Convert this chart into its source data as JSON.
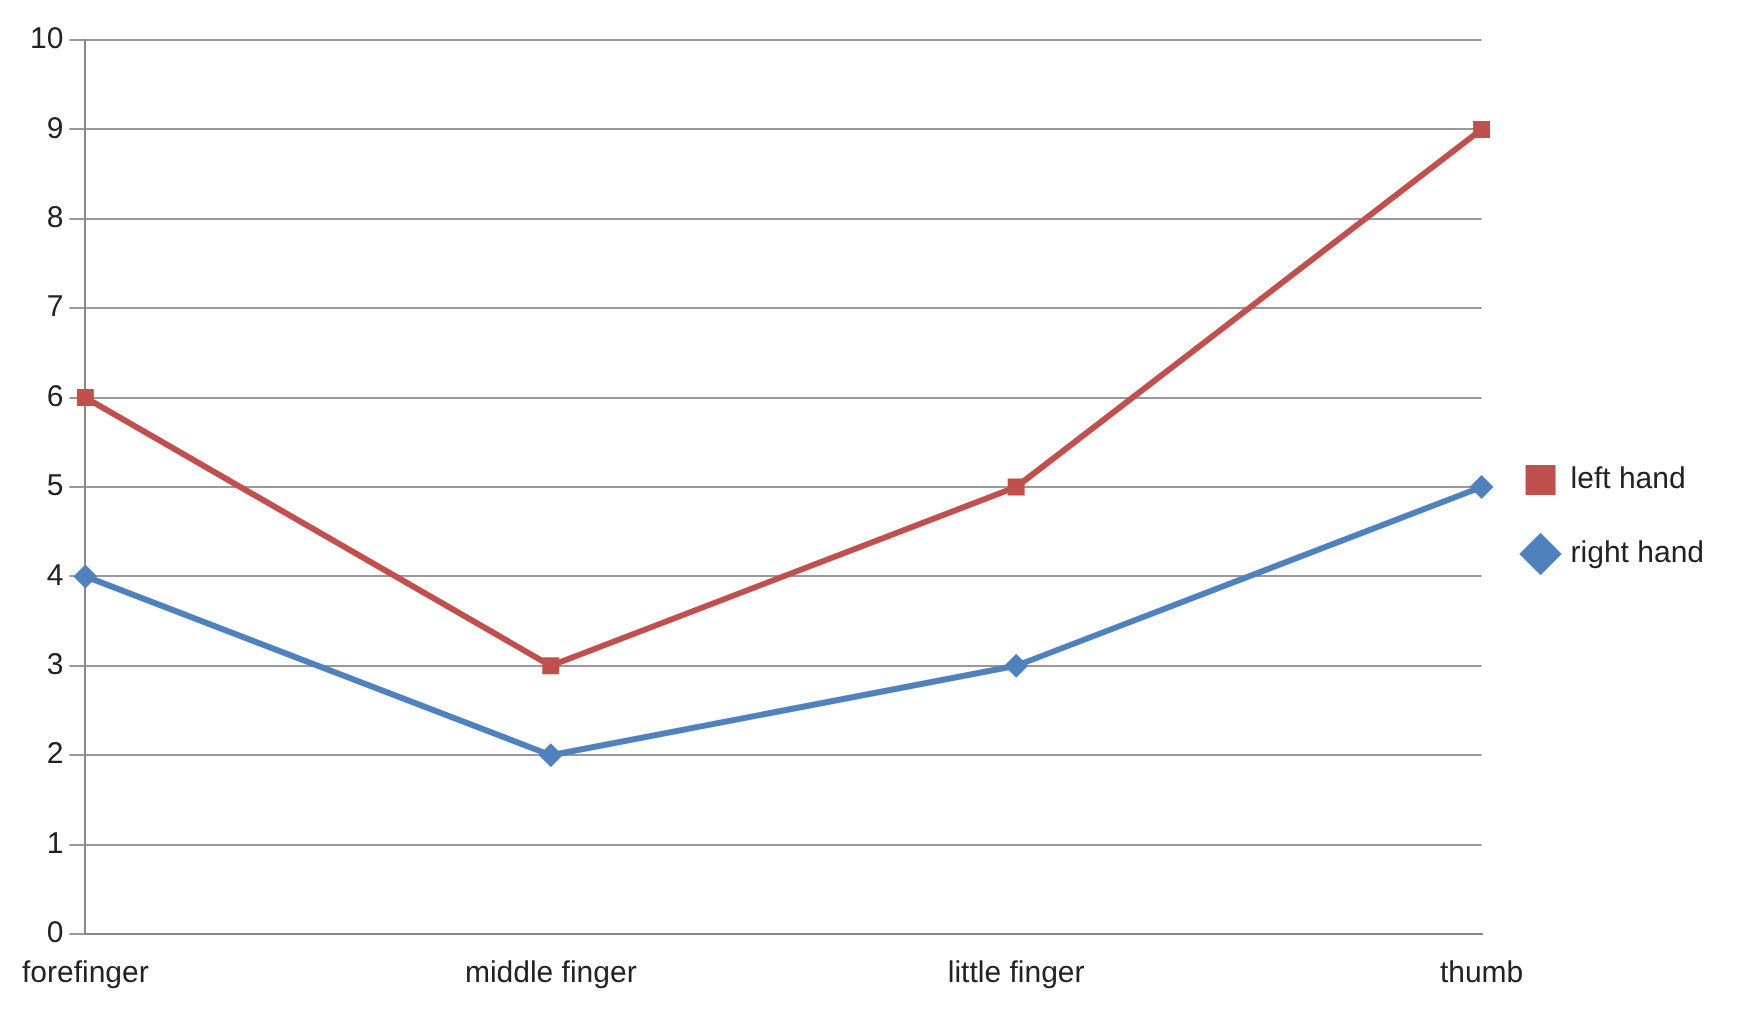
{
  "chart_data": {
    "type": "line",
    "categories": [
      "forefinger",
      "middle finger",
      "little finger",
      "thumb"
    ],
    "series": [
      {
        "name": "left hand",
        "color": "#c0504d",
        "marker": "square",
        "values": [
          6,
          3,
          5,
          9
        ]
      },
      {
        "name": "right hand",
        "color": "#4f81bd",
        "marker": "diamond",
        "values": [
          4,
          2,
          3,
          5
        ]
      }
    ],
    "ylim": [
      0,
      10
    ],
    "yticks": [
      0,
      1,
      2,
      3,
      4,
      5,
      6,
      7,
      8,
      9,
      10
    ],
    "grid": "y",
    "legend": "right",
    "line_style": "solid"
  }
}
